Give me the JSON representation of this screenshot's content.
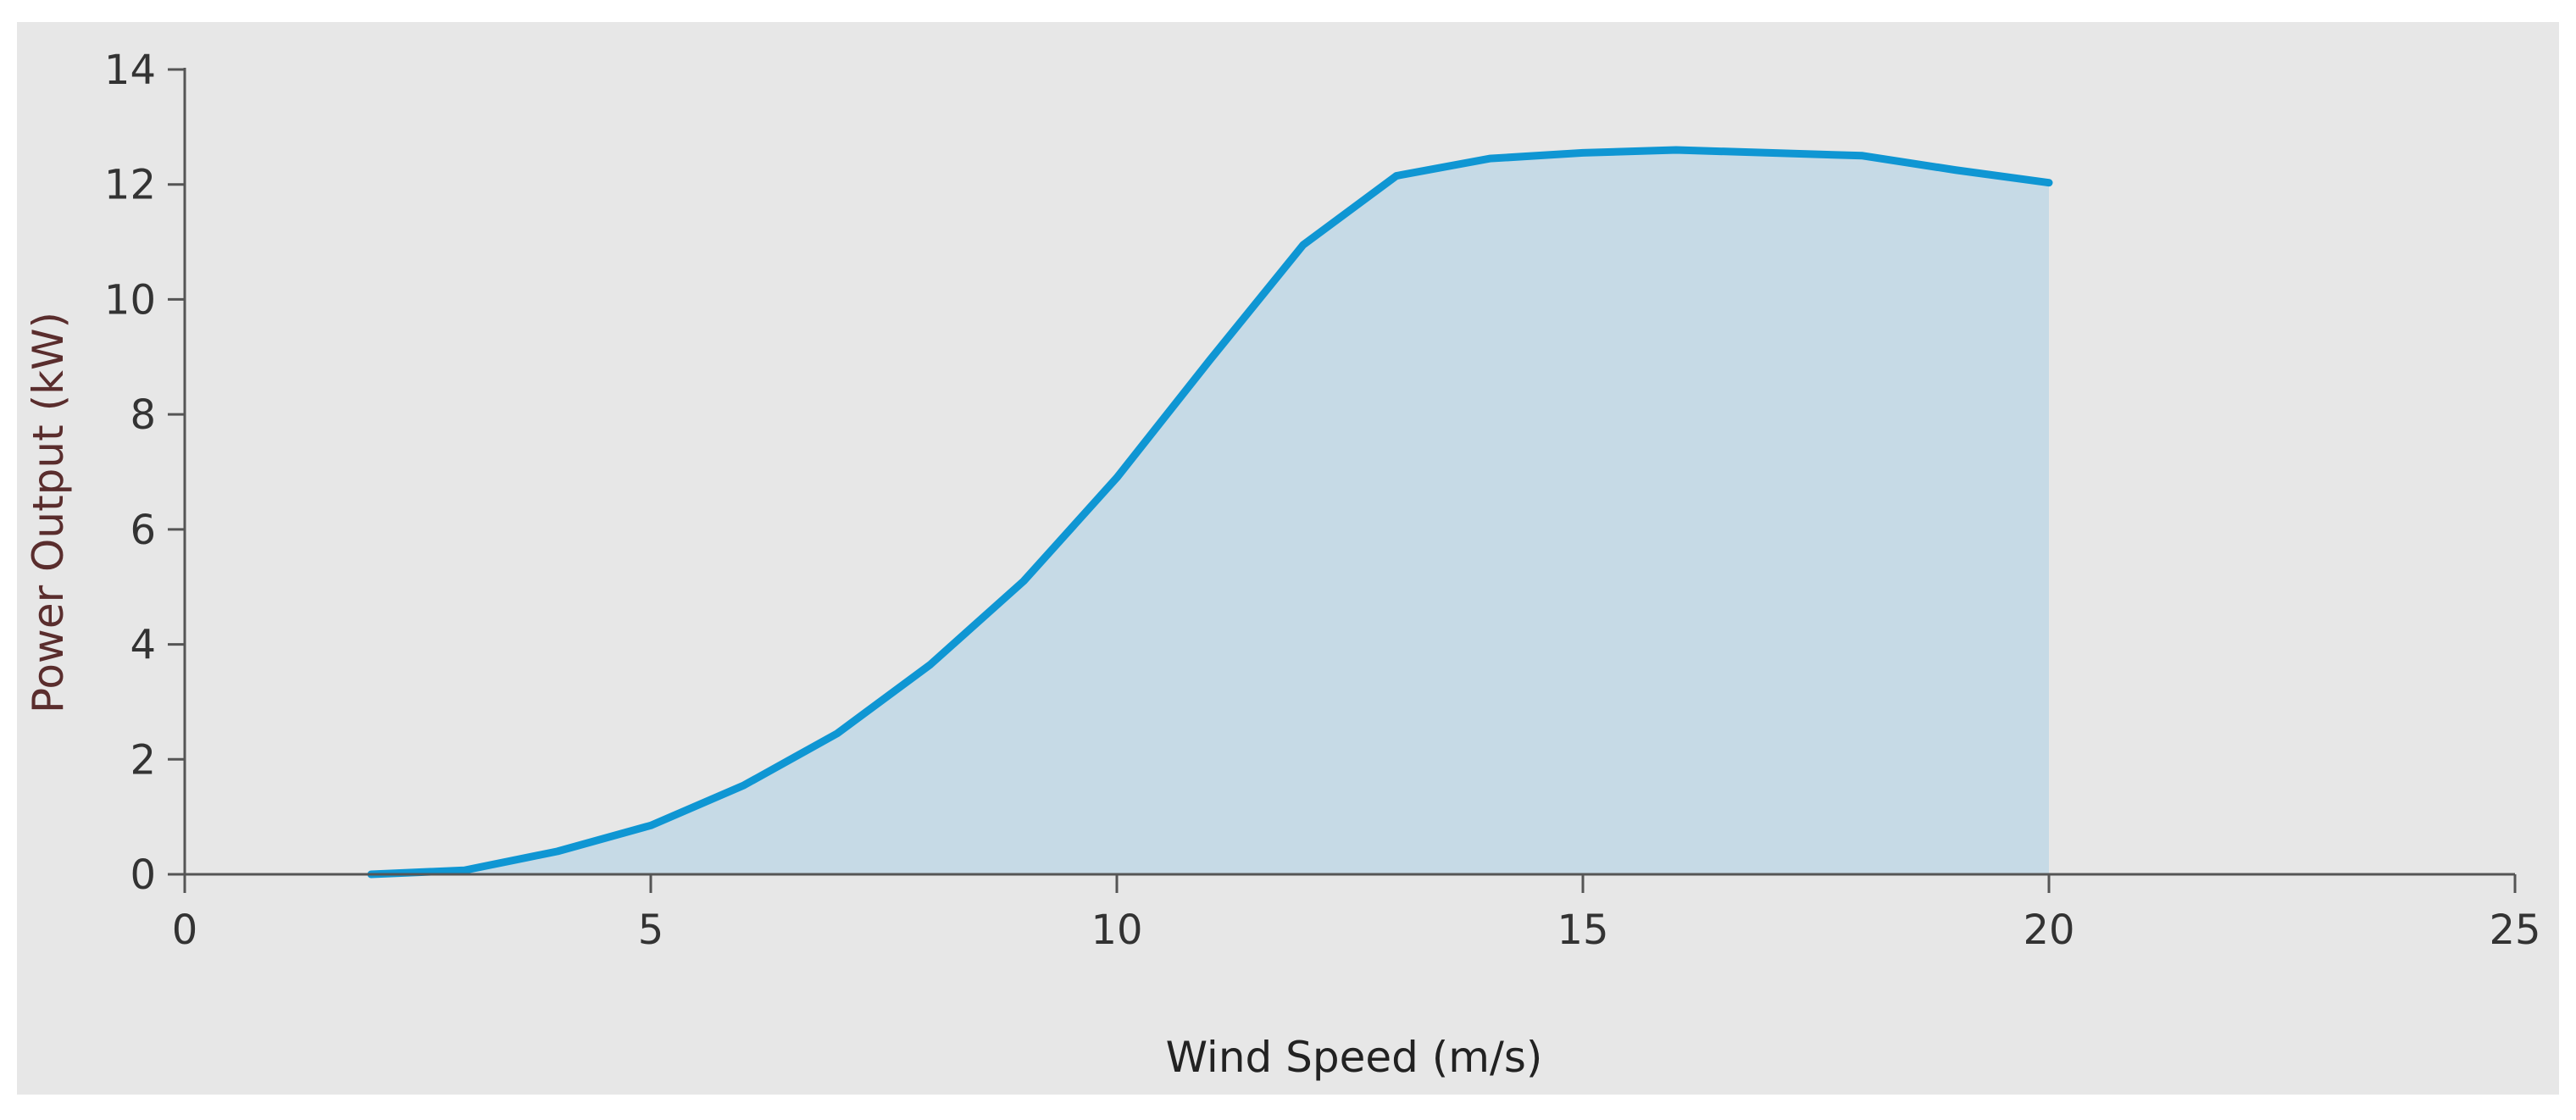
{
  "colors": {
    "panel_background": "#e7e7e7",
    "line": "#0f96d3",
    "area_fill": "#c6dae6",
    "axis": "#555555",
    "tick_text": "#333333",
    "ylabel_text": "#5a2d2d",
    "xlabel_text": "#222222"
  },
  "chart_data": {
    "type": "area",
    "xlabel": "Wind Speed (m/s)",
    "ylabel": "Power Output (kW)",
    "xlim": [
      0,
      25
    ],
    "ylim": [
      0,
      14
    ],
    "x_ticks": [
      "0",
      "5",
      "10",
      "15",
      "20",
      "25"
    ],
    "y_ticks": [
      "0",
      "2",
      "4",
      "6",
      "8",
      "10",
      "12",
      "14"
    ],
    "grid": false,
    "legend": "none",
    "series": [
      {
        "x": [
          2,
          3,
          4,
          5,
          6,
          7,
          8,
          9,
          10,
          11,
          12,
          13,
          14,
          15,
          16,
          17,
          18,
          19,
          20
        ],
        "values": [
          0,
          0.07,
          0.4,
          0.85,
          1.55,
          2.45,
          3.65,
          5.1,
          6.9,
          8.95,
          10.95,
          12.15,
          12.45,
          12.55,
          12.6,
          12.55,
          12.5,
          12.25,
          12.03
        ]
      }
    ]
  }
}
